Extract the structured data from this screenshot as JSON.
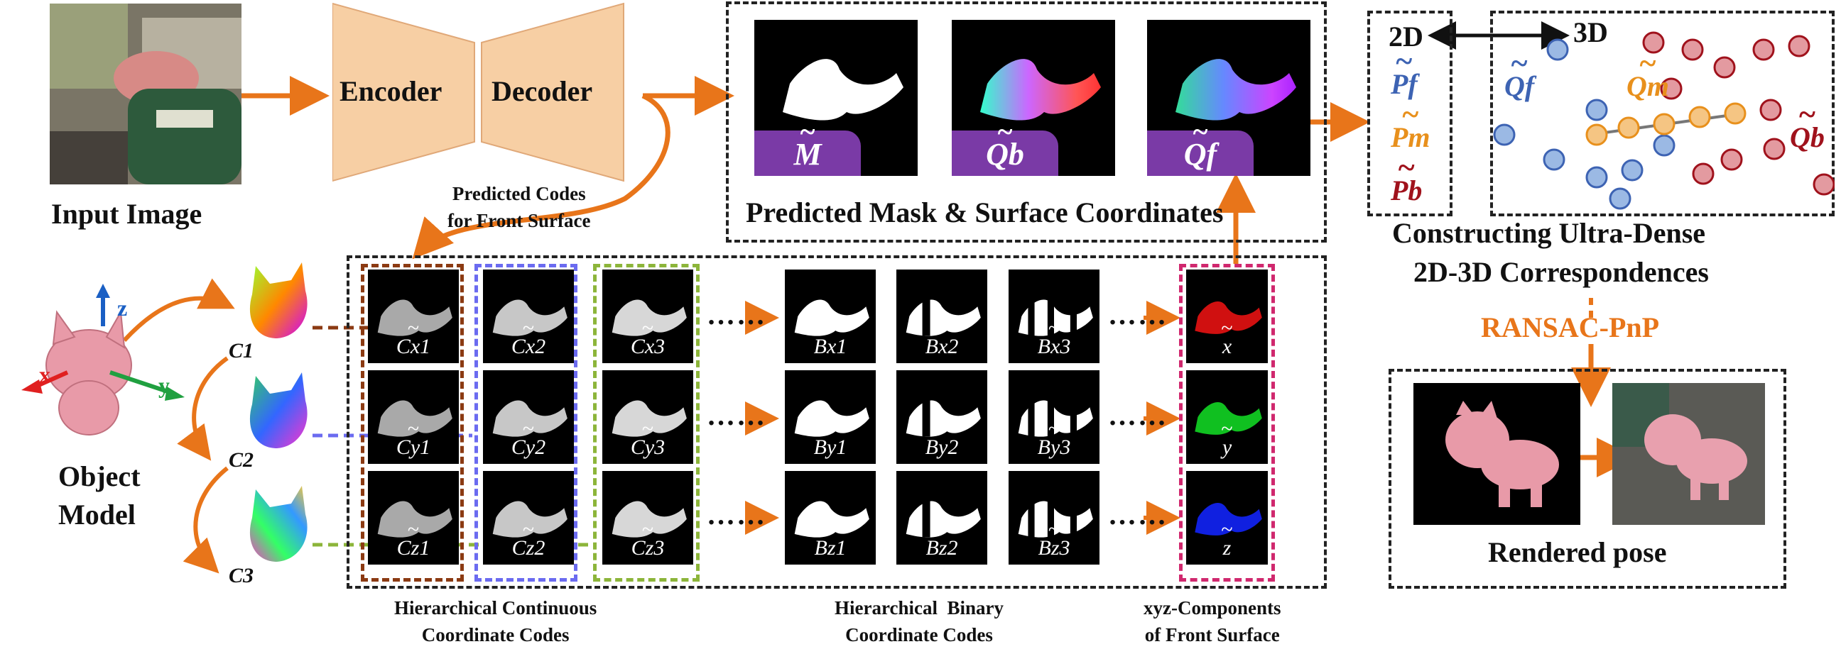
{
  "input": {
    "caption": "Input Image"
  },
  "network": {
    "encoder": "Encoder",
    "decoder": "Decoder",
    "codes_label": "Predicted Codes\nfor Front Surface"
  },
  "prediction": {
    "caption": "Predicted Mask & Surface Coordinates",
    "mask_label": "M",
    "qb_label": "Qb",
    "qf_label": "Qf"
  },
  "correspondence": {
    "label_2d": "2D",
    "label_3d": "3D",
    "pf": "Pf",
    "pm": "Pm",
    "pb": "Pb",
    "qf": "Qf",
    "qm": "Qm",
    "qb": "Qb",
    "caption_line1": "Constructing Ultra-Dense",
    "caption_line2": "2D-3D Correspondences",
    "ransac": "RANSAC-PnP",
    "colors": {
      "front": "#3d63b3",
      "middle": "#e8901c",
      "back": "#a0121c"
    }
  },
  "object_model": {
    "caption_line1": "Object",
    "caption_line2": "Model",
    "axis_x": "x",
    "axis_y": "y",
    "axis_z": "z",
    "c1": "C1",
    "c2": "C2",
    "c3": "C3"
  },
  "continuous_codes": {
    "caption": "Hierarchical Continuous\nCoordinate Codes",
    "row_x": [
      "Cx1",
      "Cx2",
      "Cx3"
    ],
    "row_y": [
      "Cy1",
      "Cy2",
      "Cy3"
    ],
    "row_z": [
      "Cz1",
      "Cz2",
      "Cz3"
    ]
  },
  "binary_codes": {
    "caption": "Hierarchical  Binary\nCoordinate Codes",
    "row_x": [
      "Bx1",
      "Bx2",
      "Bx3"
    ],
    "row_y": [
      "By1",
      "By2",
      "By3"
    ],
    "row_z": [
      "Bz1",
      "Bz2",
      "Bz3"
    ]
  },
  "xyz": {
    "caption": "xyz-Components\nof Front Surface",
    "labels": [
      "x",
      "y",
      "z"
    ]
  },
  "rendered": {
    "caption": "Rendered pose"
  },
  "ellipsis": "……",
  "colors": {
    "arrow": "#e8751a",
    "badge": "#7a3aa6",
    "group1": "#8b3a12",
    "group2": "#6b6bf0",
    "group3": "#8cb53a",
    "group_xyz": "#d0286e"
  }
}
